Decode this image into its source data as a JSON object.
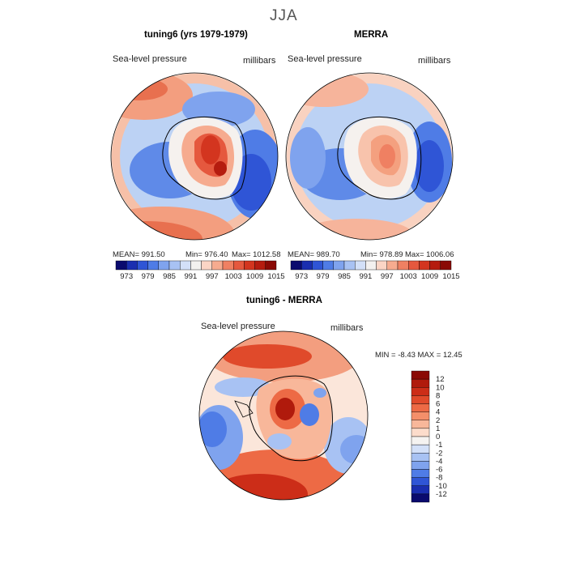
{
  "page": {
    "title": "JJA"
  },
  "panels": {
    "model": {
      "heading": "tuning6 (yrs 1979-1979)",
      "field": "Sea-level pressure",
      "units": "millibars",
      "mean": "MEAN= 991.50",
      "min": "Min= 976.40",
      "max": "Max= 1012.58"
    },
    "obs": {
      "heading": "MERRA",
      "field": "Sea-level pressure",
      "units": "millibars",
      "mean": "MEAN= 989.70",
      "min": "Min= 978.89",
      "max": "Max= 1006.06"
    },
    "diff": {
      "heading": "tuning6 - MERRA",
      "field": "Sea-level pressure",
      "units": "millibars",
      "minmax": "MIN = -8.43 MAX = 12.45"
    }
  },
  "chart_data": [
    {
      "type": "heatmap",
      "title": "tuning6 (yrs 1979-1979)",
      "variable": "Sea-level pressure",
      "units": "millibars",
      "projection": "south polar stereographic",
      "mean": 991.5,
      "min": 976.4,
      "max": 1012.58,
      "colorbar_ticks": [
        "973",
        "979",
        "985",
        "991",
        "997",
        "1003",
        "1009",
        "1015"
      ],
      "colors": [
        "#0a0a6e",
        "#1a2eb0",
        "#2f55d6",
        "#4f7ce6",
        "#7fa3ee",
        "#a8c2f3",
        "#d3e0f8",
        "#f3f1ef",
        "#fbd5c5",
        "#f6ab8f",
        "#ef8062",
        "#e5583e",
        "#d3351f",
        "#b51c0f",
        "#8a0a05"
      ]
    },
    {
      "type": "heatmap",
      "title": "MERRA",
      "variable": "Sea-level pressure",
      "units": "millibars",
      "projection": "south polar stereographic",
      "mean": 989.7,
      "min": 978.89,
      "max": 1006.06,
      "colorbar_ticks": [
        "973",
        "979",
        "985",
        "991",
        "997",
        "1003",
        "1009",
        "1015"
      ],
      "colors": [
        "#0a0a6e",
        "#1a2eb0",
        "#2f55d6",
        "#4f7ce6",
        "#7fa3ee",
        "#a8c2f3",
        "#d3e0f8",
        "#f3f1ef",
        "#fbd5c5",
        "#f6ab8f",
        "#ef8062",
        "#e5583e",
        "#d3351f",
        "#b51c0f",
        "#8a0a05"
      ]
    },
    {
      "type": "heatmap",
      "title": "tuning6 - MERRA",
      "variable": "Sea-level pressure",
      "units": "millibars",
      "projection": "south polar stereographic",
      "min": -8.43,
      "max": 12.45,
      "colorbar_ticks": [
        "12",
        "10",
        "8",
        "6",
        "4",
        "2",
        "1",
        "0",
        "-1",
        "-2",
        "-4",
        "-6",
        "-8",
        "-10",
        "-12"
      ],
      "colors": [
        "#8a0a05",
        "#b01a0c",
        "#cc2d18",
        "#e04a2b",
        "#ed6a45",
        "#f48f6a",
        "#f8b79a",
        "#fcdccb",
        "#f5f3f1",
        "#d3e0f8",
        "#a8c2f3",
        "#7fa3ee",
        "#4f7ce6",
        "#2f55d6",
        "#1a2eb0",
        "#0a0a6e"
      ]
    }
  ]
}
